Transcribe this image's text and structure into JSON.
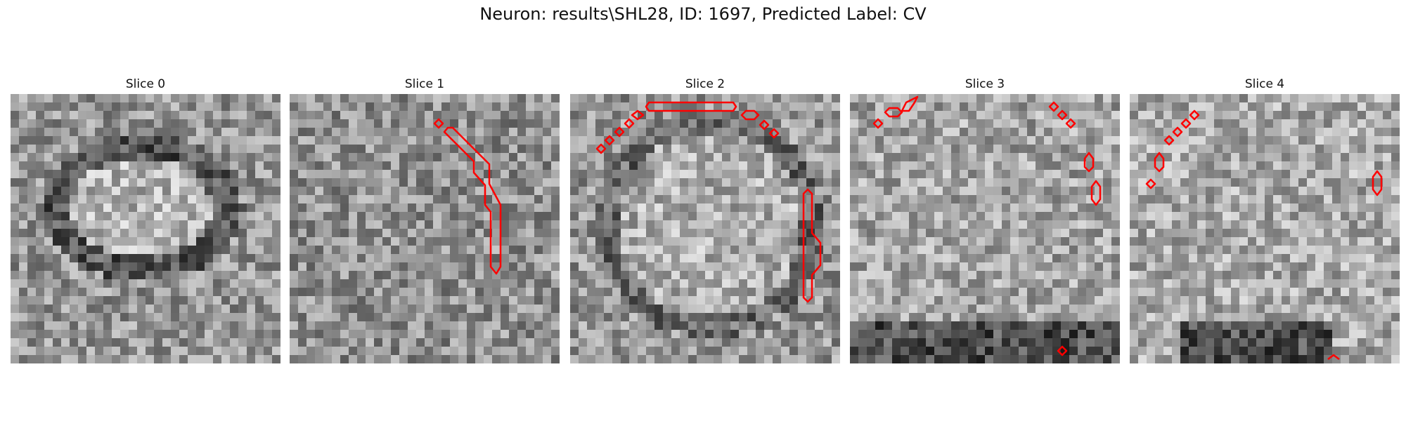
{
  "figure": {
    "title": "Neuron: results\\SHL28, ID: 1697, Predicted Label: CV"
  },
  "colors": {
    "background": "#ffffff",
    "contour": "#ff0000",
    "text": "#111111"
  },
  "panels": [
    {
      "title": "Slice 0"
    },
    {
      "title": "Slice 1"
    },
    {
      "title": "Slice 2"
    },
    {
      "title": "Slice 3"
    },
    {
      "title": "Slice 4"
    }
  ]
}
